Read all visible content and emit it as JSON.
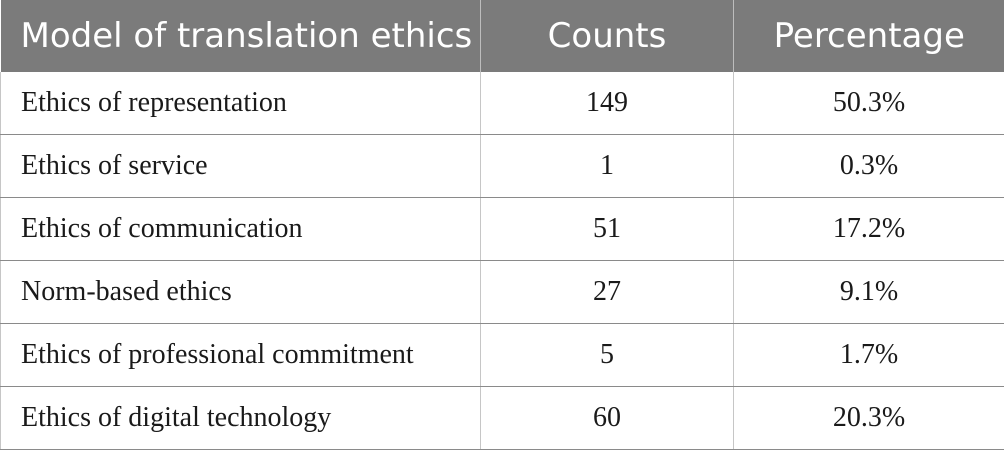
{
  "table": {
    "headers": [
      "Model of translation ethics",
      "Counts",
      "Percentage"
    ],
    "rows": [
      [
        "Ethics of representation",
        "149",
        "50.3%"
      ],
      [
        "Ethics of service",
        "1",
        "0.3%"
      ],
      [
        "Ethics of communication",
        "51",
        "17.2%"
      ],
      [
        "Norm-based ethics",
        "27",
        "9.1%"
      ],
      [
        "Ethics of professional commitment",
        "5",
        "1.7%"
      ],
      [
        "Ethics of digital technology",
        "60",
        "20.3%"
      ]
    ]
  },
  "colors": {
    "header_bg": "#7b7b7b",
    "header_text": "#ffffff",
    "body_text": "#1a1a1a",
    "rule": "#8a8a8a"
  }
}
